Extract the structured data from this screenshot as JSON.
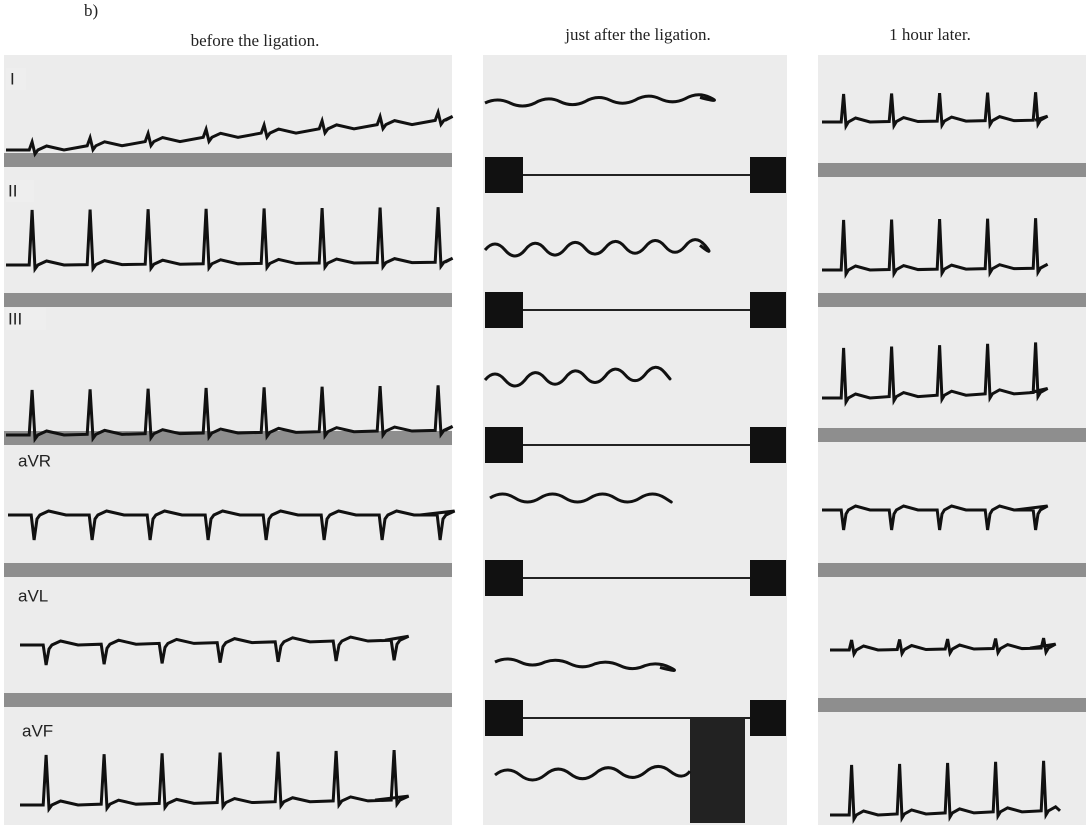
{
  "panel_label": "b)",
  "columns": [
    "before the ligation.",
    "just after the ligation.",
    "1 hour later."
  ],
  "leads": [
    "I",
    "II",
    "III",
    "aVR",
    "aVL",
    "aVF"
  ]
}
